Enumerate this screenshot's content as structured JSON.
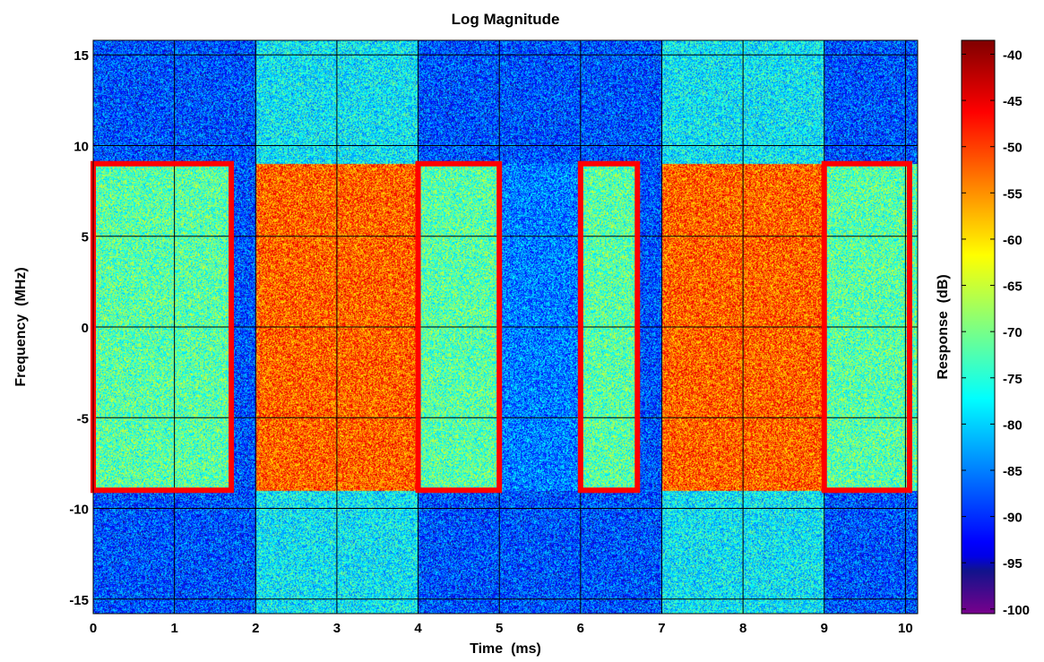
{
  "chart_data": {
    "type": "heatmap",
    "title": "Log Magnitude",
    "xlabel": "Time  (ms)",
    "ylabel": "Frequency  (MHz)",
    "colorbar_label": "Response  (dB)",
    "xlim": [
      0,
      10.15
    ],
    "ylim": [
      -15.8,
      15.8
    ],
    "clim": [
      -100.5,
      -38.5
    ],
    "x_ticks": [
      0,
      1,
      2,
      3,
      4,
      5,
      6,
      7,
      8,
      9,
      10
    ],
    "y_ticks": [
      15,
      10,
      5,
      0,
      -5,
      -10,
      -15
    ],
    "colorbar_ticks": [
      -40,
      -45,
      -50,
      -55,
      -60,
      -65,
      -70,
      -75,
      -80,
      -85,
      -90,
      -95,
      -100
    ],
    "grid": true,
    "noise_floor_db": -88,
    "regions": [
      {
        "t_start": 0,
        "t_end": 1.7,
        "f_low": -9,
        "f_high": 9,
        "level_db": -72
      },
      {
        "t_start": 2.0,
        "t_end": 4.0,
        "f_low": -9,
        "f_high": 9,
        "level_db": -52
      },
      {
        "t_start": 2.0,
        "t_end": 4.0,
        "f_low": 9,
        "f_high": 15.8,
        "level_db": -78
      },
      {
        "t_start": 2.0,
        "t_end": 4.0,
        "f_low": -15.8,
        "f_high": -9,
        "level_db": -78
      },
      {
        "t_start": 4.0,
        "t_end": 5.0,
        "f_low": -9,
        "f_high": 9,
        "level_db": -72
      },
      {
        "t_start": 5.0,
        "t_end": 6.0,
        "f_low": -9,
        "f_high": 9,
        "level_db": -85
      },
      {
        "t_start": 6.0,
        "t_end": 6.7,
        "f_low": -9,
        "f_high": 9,
        "level_db": -72
      },
      {
        "t_start": 7.0,
        "t_end": 9.0,
        "f_low": -9,
        "f_high": 9,
        "level_db": -52
      },
      {
        "t_start": 7.0,
        "t_end": 9.0,
        "f_low": 9,
        "f_high": 15.8,
        "level_db": -78
      },
      {
        "t_start": 7.0,
        "t_end": 9.0,
        "f_low": -15.8,
        "f_high": -9,
        "level_db": -78
      },
      {
        "t_start": 9.0,
        "t_end": 10.15,
        "f_low": -9,
        "f_high": 9,
        "level_db": -72
      }
    ],
    "highlight_boxes": [
      {
        "t_start": 0,
        "t_end": 1.7,
        "f_low": -9,
        "f_high": 9
      },
      {
        "t_start": 4.0,
        "t_end": 5.0,
        "f_low": -9,
        "f_high": 9
      },
      {
        "t_start": 6.0,
        "t_end": 6.7,
        "f_low": -9,
        "f_high": 9
      },
      {
        "t_start": 9.0,
        "t_end": 10.05,
        "f_low": -9,
        "f_high": 9
      }
    ],
    "highlight_color": "#ff0000",
    "colormap": "jet"
  }
}
